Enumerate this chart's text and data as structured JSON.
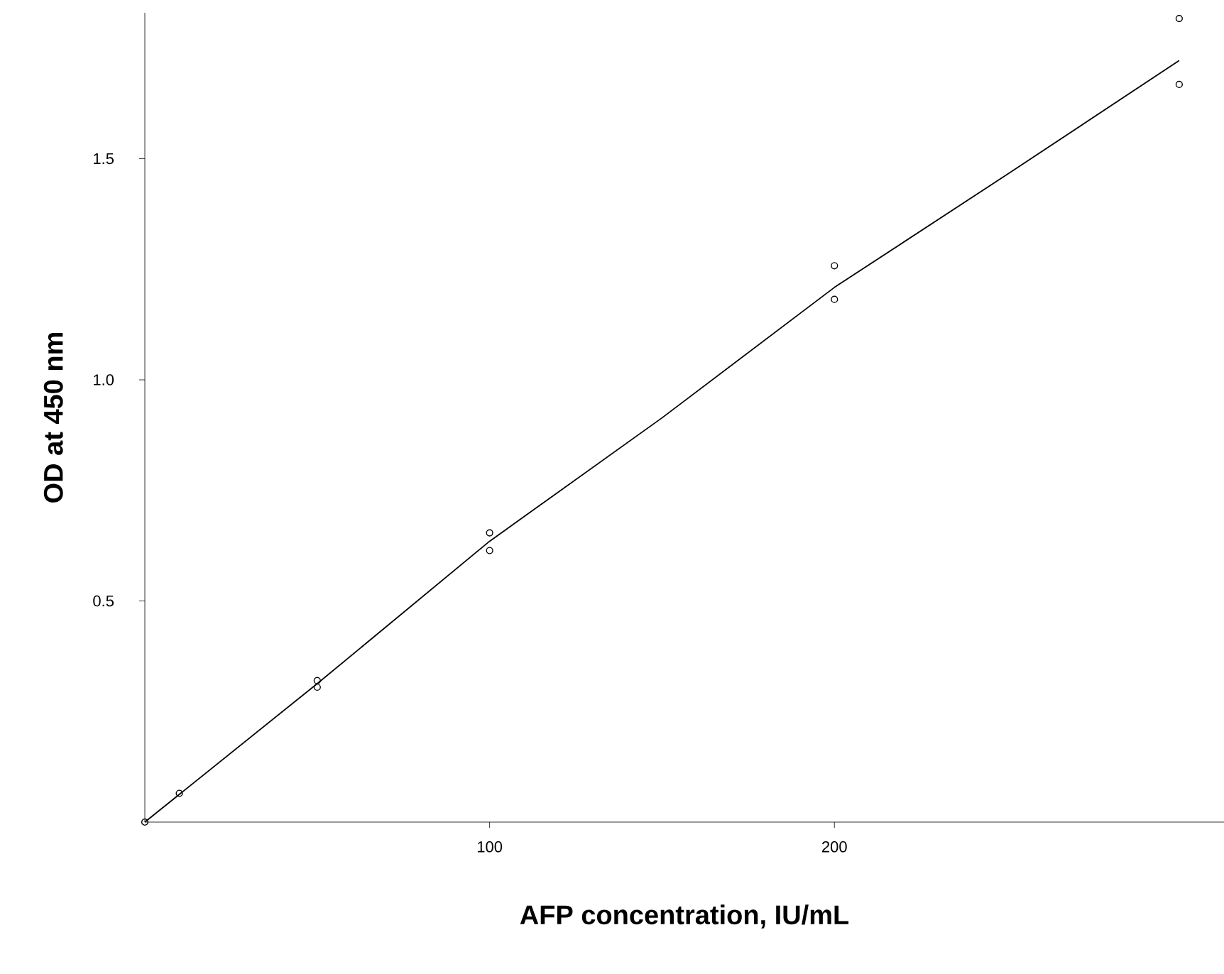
{
  "chart_data": {
    "type": "scatter",
    "xlabel": "AFP concentration, IU/mL",
    "ylabel": "OD at 450 nm",
    "xlim": [
      0,
      313
    ],
    "ylim": [
      0,
      1.83
    ],
    "xticks": [
      100,
      200
    ],
    "yticks": [
      {
        "value": 0.5,
        "label": "0.5"
      },
      {
        "value": 1.0,
        "label": "1.0"
      },
      {
        "value": 1.5,
        "label": "1.5"
      }
    ],
    "grid": false,
    "marker": "circle",
    "series": [
      {
        "color": "#000000",
        "x": [
          0,
          10,
          50,
          50,
          100,
          100,
          200,
          200,
          300,
          300
        ],
        "values": [
          0,
          0.065,
          0.32,
          0.305,
          0.654,
          0.614,
          1.258,
          1.182,
          1.817,
          1.668
        ]
      },
      {
        "type": "line",
        "color": "#000000",
        "marker": "none",
        "line_style": "solid",
        "x": [
          0,
          50,
          100,
          150,
          200,
          250,
          300
        ],
        "values": [
          0,
          0.313,
          0.635,
          0.914,
          1.209,
          1.464,
          1.722
        ]
      }
    ]
  }
}
